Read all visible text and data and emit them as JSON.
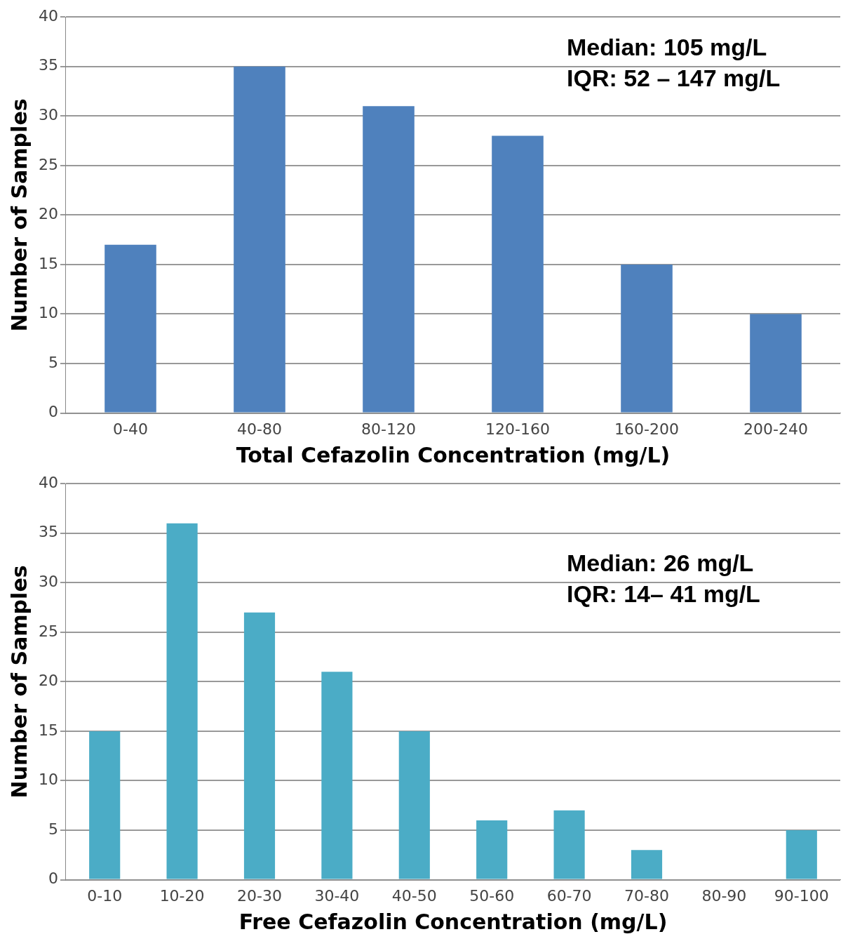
{
  "chart_data": [
    {
      "type": "bar",
      "xlabel": "Total Cefazolin Concentration (mg/L)",
      "ylabel": "Number of Samples",
      "categories": [
        "0-40",
        "40-80",
        "80-120",
        "120-160",
        "160-200",
        "200-240"
      ],
      "values": [
        17,
        35,
        31,
        28,
        15,
        10
      ],
      "color": "#4f81bd",
      "ylim": [
        0,
        40
      ],
      "yticks": [
        0,
        5,
        10,
        15,
        20,
        25,
        30,
        35,
        40
      ],
      "grid": "y",
      "legend": false,
      "annotations": [
        "Median: 105 mg/L",
        "IQR: 52 – 147 mg/L"
      ]
    },
    {
      "type": "bar",
      "xlabel": "Free Cefazolin Concentration (mg/L)",
      "ylabel": "Number of Samples",
      "categories": [
        "0-10",
        "10-20",
        "20-30",
        "30-40",
        "40-50",
        "50-60",
        "60-70",
        "70-80",
        "80-90",
        "90-100"
      ],
      "values": [
        15,
        36,
        27,
        21,
        15,
        6,
        7,
        3,
        0,
        5
      ],
      "color": "#4bacc6",
      "ylim": [
        0,
        40
      ],
      "yticks": [
        0,
        5,
        10,
        15,
        20,
        25,
        30,
        35,
        40
      ],
      "grid": "y",
      "legend": false,
      "annotations": [
        "Median: 26 mg/L",
        "IQR: 14– 41 mg/L"
      ]
    }
  ]
}
